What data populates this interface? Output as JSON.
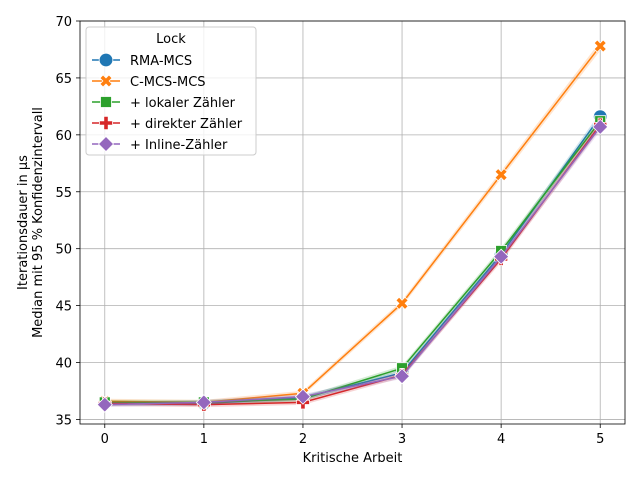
{
  "chart_data": {
    "type": "line",
    "title": "",
    "xlabel": "Kritische Arbeit",
    "ylabel_line1": "Iterationsdauer in µs",
    "ylabel_line2": "Median mit 95 % Konfidenzintervall",
    "x": [
      0,
      1,
      2,
      3,
      4,
      5
    ],
    "xlim": [
      -0.25,
      5.25
    ],
    "ylim": [
      34.6,
      70
    ],
    "xticks": [
      "0",
      "1",
      "2",
      "3",
      "4",
      "5"
    ],
    "yticks": [
      35,
      40,
      45,
      50,
      55,
      60,
      65,
      70
    ],
    "grid": true,
    "legend": {
      "title": "Lock",
      "placement": "top-left"
    },
    "series": [
      {
        "name": "RMA-MCS",
        "color": "#1f77b4",
        "marker": "circle",
        "values": [
          36.4,
          36.4,
          36.9,
          39.1,
          49.5,
          61.6
        ]
      },
      {
        "name": "C-MCS-MCS",
        "color": "#ff7f0e",
        "marker": "x",
        "values": [
          36.6,
          36.5,
          37.3,
          45.2,
          56.5,
          67.8
        ]
      },
      {
        "name": "+ lokaler Zähler",
        "color": "#2ca02c",
        "marker": "square",
        "values": [
          36.5,
          36.5,
          36.8,
          39.5,
          49.8,
          61.2
        ]
      },
      {
        "name": "+ direkter Zähler",
        "color": "#d62728",
        "marker": "plus",
        "values": [
          36.4,
          36.3,
          36.5,
          38.9,
          49.1,
          60.9
        ]
      },
      {
        "name": "+ Inline-Zähler",
        "color": "#9467bd",
        "marker": "diamond",
        "values": [
          36.3,
          36.5,
          37.0,
          38.8,
          49.3,
          60.7
        ]
      }
    ]
  }
}
